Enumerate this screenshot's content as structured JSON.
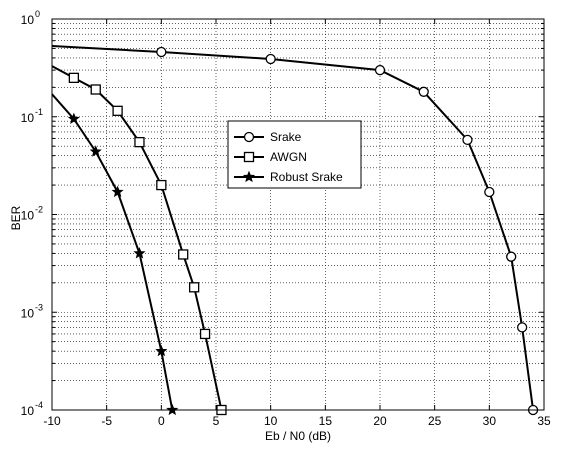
{
  "chart_data": {
    "type": "line",
    "title": "",
    "xlabel": "Eb / N0 (dB)",
    "ylabel": "BER",
    "x_scale": "linear",
    "y_scale": "log",
    "xlim": [
      -10,
      35
    ],
    "ylim": [
      0.0001,
      1
    ],
    "x_ticks": [
      -10,
      -5,
      0,
      5,
      10,
      15,
      20,
      25,
      30,
      35
    ],
    "x_tick_labels": [
      "-10",
      "-5",
      "0",
      "5",
      "10",
      "15",
      "20",
      "25",
      "30",
      "35"
    ],
    "y_ticks": [
      {
        "value": 0.0001,
        "base": "10",
        "exp": "-4"
      },
      {
        "value": 0.001,
        "base": "10",
        "exp": "-3"
      },
      {
        "value": 0.01,
        "base": "10",
        "exp": "-2"
      },
      {
        "value": 0.1,
        "base": "10",
        "exp": "-1"
      },
      {
        "value": 1,
        "base": "10",
        "exp": "0"
      }
    ],
    "grid": true,
    "legend_position": "center",
    "series": [
      {
        "name": "Srake",
        "marker": "circle",
        "color": "#000000",
        "x": [
          -10,
          0,
          10,
          20,
          24,
          28,
          30,
          32,
          33,
          34
        ],
        "y": [
          0.53,
          0.46,
          0.39,
          0.3,
          0.18,
          0.058,
          0.017,
          0.0037,
          0.0007,
          0.0001
        ],
        "marked": [
          false,
          true,
          true,
          true,
          true,
          true,
          true,
          true,
          true,
          true
        ]
      },
      {
        "name": "AWGN",
        "marker": "square",
        "color": "#000000",
        "x": [
          -10,
          -8,
          -6,
          -4,
          -2,
          0,
          2,
          3,
          4,
          5.5
        ],
        "y": [
          0.33,
          0.25,
          0.19,
          0.115,
          0.055,
          0.02,
          0.0039,
          0.0018,
          0.0006,
          0.0001
        ],
        "marked": [
          false,
          true,
          true,
          true,
          true,
          true,
          true,
          true,
          true,
          true
        ]
      },
      {
        "name": "Robust Srake",
        "marker": "star",
        "color": "#000000",
        "x": [
          -10,
          -8,
          -6,
          -4,
          -2,
          0,
          1
        ],
        "y": [
          0.17,
          0.095,
          0.044,
          0.017,
          0.004,
          0.0004,
          0.0001
        ],
        "marked": [
          false,
          true,
          true,
          true,
          true,
          true,
          true
        ]
      }
    ]
  }
}
